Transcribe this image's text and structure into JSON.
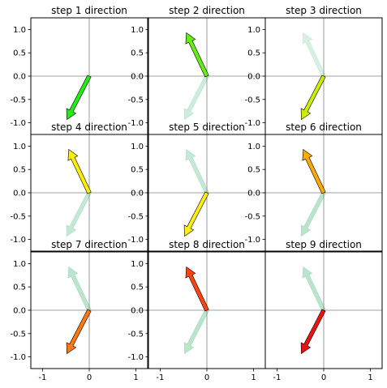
{
  "chart_data": [
    {
      "type": "quiver",
      "title": "step 1 direction",
      "arrows": [
        {
          "x": 0,
          "y": 0,
          "u": -0.48,
          "v": -0.93,
          "color": "#22ee11",
          "alpha": 1
        }
      ],
      "xlim": [
        -1.25,
        1.25
      ],
      "ylim": [
        -1.25,
        1.25
      ],
      "xticks": [],
      "yticks": [
        "1.0",
        "0.5",
        "0.0",
        "-0.5",
        "-1.0"
      ]
    },
    {
      "type": "quiver",
      "title": "step 2 direction",
      "arrows": [
        {
          "x": 0,
          "y": 0,
          "u": -0.48,
          "v": -0.93,
          "color": "#3cb371",
          "alpha": 0.25
        },
        {
          "x": 0,
          "y": 0,
          "u": -0.44,
          "v": 0.93,
          "color": "#66ee11",
          "alpha": 1
        }
      ],
      "xlim": [
        -1.25,
        1.25
      ],
      "ylim": [
        -1.25,
        1.25
      ],
      "xticks": [],
      "yticks": [
        "1.0",
        "0.5",
        "0.0",
        "-0.5",
        "-1.0"
      ]
    },
    {
      "type": "quiver",
      "title": "step 3 direction",
      "arrows": [
        {
          "x": 0,
          "y": 0,
          "u": -0.44,
          "v": 0.93,
          "color": "#3cb371",
          "alpha": 0.2
        },
        {
          "x": 0,
          "y": 0,
          "u": -0.48,
          "v": -0.93,
          "color": "#ccee00",
          "alpha": 1
        }
      ],
      "xlim": [
        -1.25,
        1.25
      ],
      "ylim": [
        -1.25,
        1.25
      ],
      "xticks": [],
      "yticks": [
        "1.0",
        "0.5",
        "0.0",
        "-0.5",
        "-1.0"
      ]
    },
    {
      "type": "quiver",
      "title": "step 4 direction",
      "arrows": [
        {
          "x": 0,
          "y": 0,
          "u": -0.48,
          "v": -0.93,
          "color": "#3cb371",
          "alpha": 0.3
        },
        {
          "x": 0,
          "y": 0,
          "u": -0.44,
          "v": 0.93,
          "color": "#ffee00",
          "alpha": 1
        }
      ],
      "xlim": [
        -1.25,
        1.25
      ],
      "ylim": [
        -1.25,
        1.25
      ],
      "xticks": [],
      "yticks": [
        "1.0",
        "0.5",
        "0.0",
        "-0.5",
        "-1.0"
      ]
    },
    {
      "type": "quiver",
      "title": "step 5 direction",
      "arrows": [
        {
          "x": 0,
          "y": 0,
          "u": -0.44,
          "v": 0.93,
          "color": "#3cb371",
          "alpha": 0.3
        },
        {
          "x": 0,
          "y": 0,
          "u": -0.48,
          "v": -0.93,
          "color": "#ffee11",
          "alpha": 1
        }
      ],
      "xlim": [
        -1.25,
        1.25
      ],
      "ylim": [
        -1.25,
        1.25
      ],
      "xticks": [],
      "yticks": [
        "1.0",
        "0.5",
        "0.0",
        "-0.5",
        "-1.0"
      ]
    },
    {
      "type": "quiver",
      "title": "step 6 direction",
      "arrows": [
        {
          "x": 0,
          "y": 0,
          "u": -0.48,
          "v": -0.93,
          "color": "#3cb371",
          "alpha": 0.35
        },
        {
          "x": 0,
          "y": 0,
          "u": -0.44,
          "v": 0.93,
          "color": "#ffaa00",
          "alpha": 1
        }
      ],
      "xlim": [
        -1.25,
        1.25
      ],
      "ylim": [
        -1.25,
        1.25
      ],
      "xticks": [],
      "yticks": [
        "1.0",
        "0.5",
        "0.0",
        "-0.5",
        "-1.0"
      ]
    },
    {
      "type": "quiver",
      "title": "step 7 direction",
      "arrows": [
        {
          "x": 0,
          "y": 0,
          "u": -0.44,
          "v": 0.93,
          "color": "#3cb371",
          "alpha": 0.35
        },
        {
          "x": 0,
          "y": 0,
          "u": -0.48,
          "v": -0.93,
          "color": "#ff7711",
          "alpha": 1
        }
      ],
      "xlim": [
        -1.25,
        1.25
      ],
      "ylim": [
        -1.25,
        1.25
      ],
      "xticks": [
        "-1",
        "0",
        "1"
      ],
      "yticks": [
        "1.0",
        "0.5",
        "0.0",
        "-0.5",
        "-1.0"
      ]
    },
    {
      "type": "quiver",
      "title": "step 8 direction",
      "arrows": [
        {
          "x": 0,
          "y": 0,
          "u": -0.48,
          "v": -0.93,
          "color": "#3cb371",
          "alpha": 0.35
        },
        {
          "x": 0,
          "y": 0,
          "u": -0.44,
          "v": 0.93,
          "color": "#ff4411",
          "alpha": 1
        }
      ],
      "xlim": [
        -1.25,
        1.25
      ],
      "ylim": [
        -1.25,
        1.25
      ],
      "xticks": [
        "-1",
        "0",
        "1"
      ],
      "yticks": [
        "1.0",
        "0.5",
        "0.0",
        "-0.5",
        "-1.0"
      ]
    },
    {
      "type": "quiver",
      "title": "step 9 direction",
      "arrows": [
        {
          "x": 0,
          "y": 0,
          "u": -0.44,
          "v": 0.93,
          "color": "#3cb371",
          "alpha": 0.35
        },
        {
          "x": 0,
          "y": 0,
          "u": -0.48,
          "v": -0.93,
          "color": "#ee1111",
          "alpha": 1
        }
      ],
      "xlim": [
        -1.25,
        1.25
      ],
      "ylim": [
        -1.25,
        1.25
      ],
      "xticks": [
        "-1",
        "0",
        "1"
      ],
      "yticks": []
    }
  ]
}
